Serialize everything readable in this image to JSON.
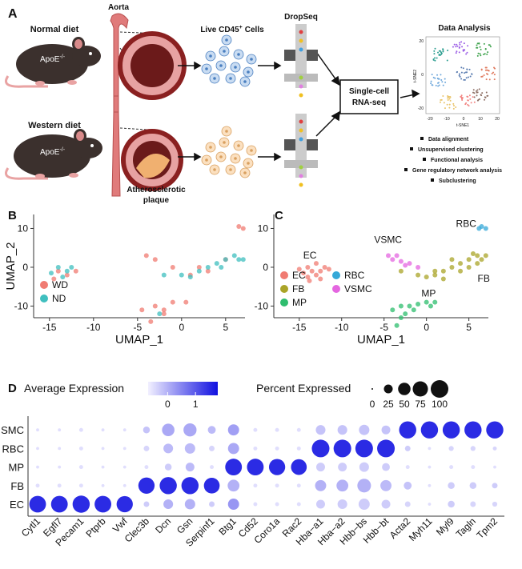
{
  "panel_a": {
    "letter": "A",
    "normal_diet": "Normal diet",
    "western_diet": "Western diet",
    "genotype": {
      "base": "ApoE",
      "sup": "-/-"
    },
    "aorta": "Aorta",
    "plaque": [
      "Atherosclerotic",
      "plaque"
    ],
    "cells": {
      "prefix": "Live CD45",
      "sup": "+",
      "suffix": "Cells"
    },
    "dropseq": "DropSeq",
    "box": [
      "Single-cell",
      "RNA-seq"
    ],
    "analysis_title": "Data Analysis",
    "tsne": {
      "xlabel": "t-SNE1",
      "ylabel": "t-SNE2",
      "xticks": [
        "-20",
        "-10",
        "0",
        "10",
        "20"
      ],
      "yticks": [
        "-20",
        "0",
        "20"
      ]
    },
    "steps": [
      "Data alignment",
      "Unsupervised clustering",
      "Functional analysis",
      "Gene regulatory network analysis",
      "Subclustering"
    ]
  },
  "chart_data": [
    {
      "type": "scatter",
      "panel": "B",
      "xlabel": "UMAP_1",
      "ylabel": "UMAP_2",
      "xlim": [
        -16.8,
        7.2
      ],
      "ylim": [
        -13,
        13.6
      ],
      "xticks": [
        -15,
        -10,
        -5,
        0,
        5
      ],
      "yticks": [
        -10,
        0,
        10
      ],
      "series": [
        {
          "name": "WD",
          "color": "#f07b72",
          "x": [
            6.5,
            7,
            -14,
            -13,
            -14.5,
            -4,
            -3,
            -1,
            1,
            3,
            -3,
            -1,
            0.5,
            -3.5,
            -2,
            5,
            -12,
            -4.5,
            -2,
            2
          ],
          "y": [
            10.5,
            10,
            -1,
            -2,
            -3,
            3,
            2,
            0,
            -2,
            -1,
            -10,
            -9,
            -9,
            -14,
            -11,
            2,
            -1,
            -11,
            -12,
            0
          ]
        },
        {
          "name": "ND",
          "color": "#3fbfbf",
          "x": [
            -14,
            -13,
            -12.5,
            -2,
            0,
            2,
            4,
            5,
            6,
            7,
            3,
            -2.5,
            -13.5,
            1,
            4.5,
            6.5,
            -14.8
          ],
          "y": [
            0,
            -1,
            0,
            -2,
            -2,
            -1,
            1,
            2,
            3,
            2,
            0,
            -12,
            -2.5,
            -2.5,
            0,
            2,
            -1.5
          ]
        }
      ]
    },
    {
      "type": "scatter",
      "panel": "C",
      "xlabel": "UMAP_1",
      "xlim": [
        -18,
        7.3
      ],
      "ylim": [
        -13,
        13.6
      ],
      "xticks": [
        -15,
        -10,
        -5,
        0,
        5
      ],
      "yticks": [
        -10,
        0,
        10
      ],
      "series": [
        {
          "name": "EC",
          "color": "#f07b72",
          "x": [
            -15,
            -14.5,
            -14,
            -13.5,
            -13,
            -12.5,
            -12,
            -12.5,
            -14,
            -13,
            -11.5,
            -13.8
          ],
          "y": [
            -0.5,
            -1.5,
            0,
            -1,
            -2,
            -1,
            0,
            -3,
            -2.5,
            1,
            -0.5,
            -3.5
          ]
        },
        {
          "name": "FB",
          "color": "#aaa428",
          "x": [
            -3,
            -1,
            0,
            1,
            2,
            3,
            4,
            5,
            6,
            7,
            2,
            4,
            6,
            5,
            1,
            3,
            6.5,
            5.5
          ],
          "y": [
            -1,
            -2,
            -2.5,
            -2,
            -1,
            0,
            1,
            2,
            3,
            3,
            -3,
            -1,
            1,
            0,
            -1,
            2,
            2,
            3.5
          ]
        },
        {
          "name": "MP",
          "color": "#2ebd6e",
          "x": [
            -4,
            -3,
            -2,
            -1,
            0,
            1,
            -3,
            -2.5,
            -3.5,
            0.5,
            -1.5
          ],
          "y": [
            -11,
            -10,
            -10,
            -9.5,
            -9,
            -9,
            -13,
            -12,
            -15,
            -10,
            -11
          ]
        },
        {
          "name": "RBC",
          "color": "#35a8d8",
          "x": [
            6.5,
            7,
            6.2
          ],
          "y": [
            10.5,
            10,
            10
          ]
        },
        {
          "name": "VSMC",
          "color": "#e466e0",
          "x": [
            -4.5,
            -4,
            -3,
            -2,
            -1,
            -3.5,
            -2.5
          ],
          "y": [
            3,
            2,
            1.5,
            1,
            0,
            3,
            0.5
          ]
        }
      ]
    },
    {
      "type": "dot",
      "panel": "D",
      "categories": [
        "Cytl1",
        "Egfl7",
        "Pecam1",
        "Ptprb",
        "Vwf",
        "Clec3b",
        "Dcn",
        "Gsn",
        "Serpinf1",
        "Btg1",
        "Cd52",
        "Coro1a",
        "Rac2",
        "Hba−a1",
        "Hba−a2",
        "Hbb−bs",
        "Hbb−bt",
        "Acta2",
        "Myh11",
        "Myl9",
        "Tagln",
        "Tpm2"
      ],
      "color_label": "Average Expression",
      "clim": [
        -0.7,
        1.8
      ],
      "colorbar_ticks": [
        0,
        1
      ],
      "low_color": "#f2f0ff",
      "high_color": "#1010e0",
      "size_label": "Percent Expressed",
      "size_ticks": [
        0,
        25,
        50,
        75,
        100
      ],
      "series": [
        {
          "name": "EC",
          "avg_expression": [
            1.5,
            1.5,
            1.5,
            1.5,
            1.5,
            -0.3,
            0,
            0,
            -0.3,
            0.3,
            -0.5,
            -0.5,
            -0.5,
            -0.3,
            -0.3,
            -0.3,
            -0.3,
            -0.4,
            -0.5,
            -0.3,
            -0.4,
            -0.4
          ],
          "percent_expressed": [
            90,
            90,
            95,
            90,
            85,
            10,
            30,
            35,
            10,
            40,
            5,
            5,
            5,
            25,
            30,
            40,
            25,
            10,
            3,
            15,
            10,
            8
          ]
        },
        {
          "name": "FB",
          "avg_expression": [
            -0.5,
            -0.5,
            -0.5,
            -0.5,
            -0.5,
            1.5,
            1.5,
            1.5,
            1.5,
            0,
            -0.5,
            -0.5,
            -0.5,
            0,
            0,
            0,
            -0.1,
            -0.2,
            -0.5,
            -0.3,
            -0.3,
            -0.3
          ],
          "percent_expressed": [
            5,
            5,
            5,
            3,
            3,
            85,
            95,
            95,
            80,
            45,
            5,
            5,
            5,
            40,
            45,
            60,
            40,
            20,
            3,
            15,
            15,
            10
          ]
        },
        {
          "name": "MP",
          "avg_expression": [
            -0.5,
            -0.5,
            -0.5,
            -0.5,
            -0.5,
            -0.5,
            -0.3,
            -0.1,
            -0.5,
            1.5,
            1.5,
            1.5,
            1.5,
            -0.3,
            -0.3,
            -0.3,
            -0.3,
            -0.5,
            -0.5,
            -0.5,
            -0.5,
            -0.5
          ],
          "percent_expressed": [
            3,
            3,
            5,
            3,
            3,
            5,
            15,
            25,
            5,
            90,
            90,
            85,
            80,
            25,
            25,
            30,
            20,
            5,
            3,
            5,
            5,
            3
          ]
        },
        {
          "name": "RBC",
          "avg_expression": [
            -0.5,
            -0.5,
            -0.5,
            -0.5,
            -0.5,
            -0.4,
            -0.1,
            -0.1,
            -0.4,
            0.1,
            -0.5,
            -0.5,
            -0.5,
            1.5,
            1.5,
            1.5,
            1.5,
            -0.3,
            -0.5,
            -0.4,
            -0.4,
            -0.4
          ],
          "percent_expressed": [
            3,
            3,
            5,
            3,
            3,
            10,
            30,
            35,
            10,
            40,
            5,
            5,
            5,
            100,
            100,
            100,
            100,
            10,
            3,
            8,
            8,
            5
          ]
        },
        {
          "name": "SMC",
          "avg_expression": [
            -0.5,
            -0.5,
            -0.5,
            -0.5,
            -0.5,
            -0.2,
            0.1,
            0.1,
            -0.1,
            0.2,
            -0.5,
            -0.5,
            -0.5,
            -0.2,
            -0.2,
            -0.2,
            -0.2,
            1.5,
            1.5,
            1.5,
            1.5,
            1.5
          ],
          "percent_expressed": [
            3,
            3,
            5,
            3,
            3,
            15,
            50,
            55,
            20,
            40,
            5,
            5,
            5,
            30,
            30,
            35,
            25,
            95,
            95,
            95,
            95,
            95
          ]
        }
      ]
    }
  ]
}
